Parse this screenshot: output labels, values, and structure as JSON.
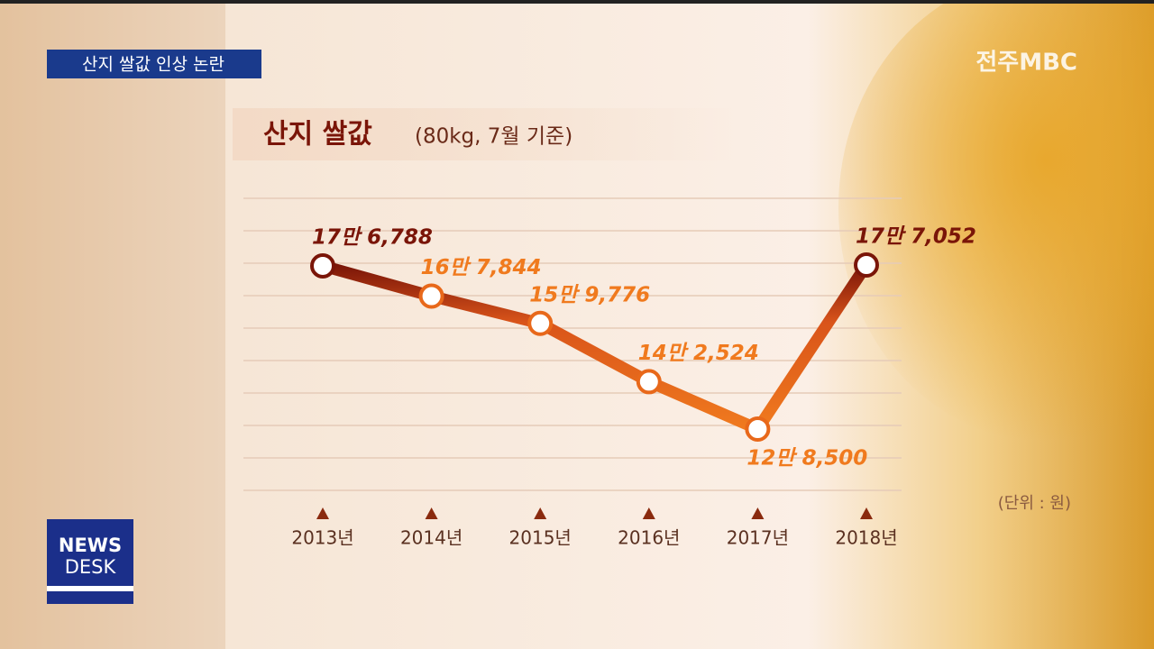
{
  "broadcast": {
    "caption": "산지 쌀값 인상 논란",
    "channel": "전주MBC",
    "program": [
      "NEWS",
      "DESK"
    ]
  },
  "chart_data": {
    "type": "line",
    "title": "산지 쌀값",
    "subtitle": "(80kg, 7월 기준)",
    "unit_note": "(단위 : 원)",
    "categories": [
      "2013년",
      "2014년",
      "2015년",
      "2016년",
      "2017년",
      "2018년"
    ],
    "values": [
      176788,
      167844,
      159776,
      142524,
      128500,
      177052
    ],
    "value_labels": [
      "17만 6,788",
      "16만 7,844",
      "15만 9,776",
      "14만 2,524",
      "12만 8,500",
      "17만 7,052"
    ],
    "colors": [
      "#7a1508",
      "#f07a1e"
    ]
  }
}
